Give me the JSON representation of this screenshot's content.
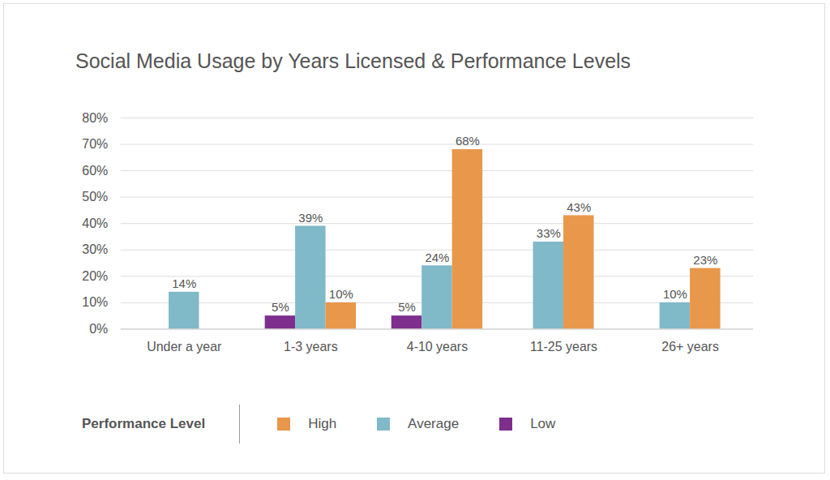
{
  "chart_data": {
    "type": "bar",
    "title": "Social Media Usage by Years Licensed & Performance Levels",
    "categories": [
      "Under a year",
      "1-3 years",
      "4-10 years",
      "11-25 years",
      "26+ years"
    ],
    "series": [
      {
        "name": "High",
        "color": "#E9974B",
        "values": [
          null,
          10,
          68,
          43,
          23
        ],
        "value_labels": [
          null,
          "10%",
          "68%",
          "43%",
          "23%"
        ]
      },
      {
        "name": "Average",
        "color": "#80B9C8",
        "values": [
          14,
          39,
          24,
          33,
          10
        ],
        "value_labels": [
          "14%",
          "39%",
          "24%",
          "33%",
          "10%"
        ]
      },
      {
        "name": "Low",
        "color": "#7E2E8C",
        "values": [
          null,
          5,
          5,
          null,
          null
        ],
        "value_labels": [
          null,
          "5%",
          "5%",
          null,
          null
        ]
      }
    ],
    "ylim": [
      0,
      80
    ],
    "yticks": [
      {
        "value": 0,
        "label": "0%"
      },
      {
        "value": 10,
        "label": "10%"
      },
      {
        "value": 20,
        "label": "20%"
      },
      {
        "value": 30,
        "label": "30%"
      },
      {
        "value": 40,
        "label": "40%"
      },
      {
        "value": 50,
        "label": "50%"
      },
      {
        "value": 60,
        "label": "60%"
      },
      {
        "value": 70,
        "label": "70%"
      },
      {
        "value": 80,
        "label": "80%"
      }
    ],
    "grid": true,
    "data_labels": true,
    "legend": "bottom",
    "legend_title": "Performance Level"
  }
}
